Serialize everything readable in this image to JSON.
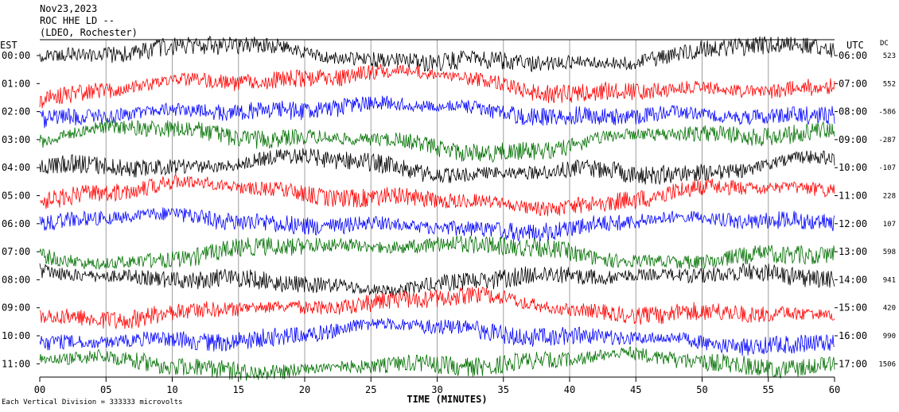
{
  "header": {
    "date": "Nov23,2023",
    "station": "ROC HHE LD --",
    "network": "(LDEO, Rochester)"
  },
  "left_axis_label": "EST",
  "right_axis_label": "UTC",
  "dc_label": "DC",
  "footer_note": "Each Vertical Division = 333333 microvolts",
  "chart_data": {
    "type": "line",
    "xlabel": "TIME (MINUTES)",
    "xlim": [
      0,
      60
    ],
    "x_ticks": [
      "00",
      "05",
      "10",
      "15",
      "20",
      "25",
      "30",
      "35",
      "40",
      "45",
      "50",
      "55",
      "60"
    ],
    "trace_colors": [
      "#000000",
      "#ff0000",
      "#0000ff",
      "#007000"
    ],
    "rows": [
      {
        "est": "00:00",
        "utc": "06:00",
        "dc": "523",
        "color": "#000000"
      },
      {
        "est": "01:00",
        "utc": "07:00",
        "dc": "552",
        "color": "#ff0000"
      },
      {
        "est": "02:00",
        "utc": "08:00",
        "dc": "-586",
        "color": "#0000ff"
      },
      {
        "est": "03:00",
        "utc": "09:00",
        "dc": "-287",
        "color": "#007000"
      },
      {
        "est": "04:00",
        "utc": "10:00",
        "dc": "-107",
        "color": "#000000"
      },
      {
        "est": "05:00",
        "utc": "11:00",
        "dc": "228",
        "color": "#ff0000"
      },
      {
        "est": "06:00",
        "utc": "12:00",
        "dc": "107",
        "color": "#0000ff"
      },
      {
        "est": "07:00",
        "utc": "13:00",
        "dc": "598",
        "color": "#007000"
      },
      {
        "est": "08:00",
        "utc": "14:00",
        "dc": "941",
        "color": "#000000"
      },
      {
        "est": "09:00",
        "utc": "15:00",
        "dc": "420",
        "color": "#ff0000"
      },
      {
        "est": "10:00",
        "utc": "16:00",
        "dc": "990",
        "color": "#0000ff"
      },
      {
        "est": "11:00",
        "utc": "17:00",
        "dc": "1506",
        "color": "#007000"
      }
    ]
  }
}
